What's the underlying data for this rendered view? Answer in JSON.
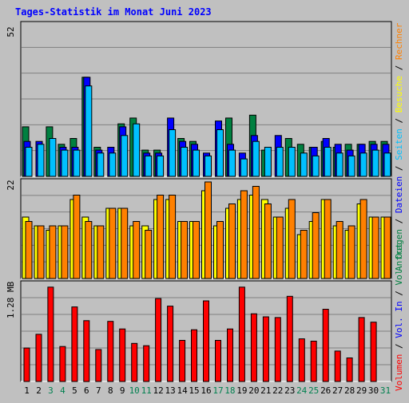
{
  "title": "Tages-Statistik im Monat Juni 2023",
  "chart_data": [
    {
      "type": "bar",
      "name": "hits-files-pages-visits",
      "categories": [
        "1",
        "2",
        "3",
        "4",
        "5",
        "6",
        "7",
        "8",
        "9",
        "10",
        "11",
        "12",
        "13",
        "14",
        "15",
        "16",
        "17",
        "18",
        "19",
        "20",
        "21",
        "22",
        "23",
        "24",
        "25",
        "26",
        "27",
        "28",
        "29",
        "30",
        "31"
      ],
      "ylim": [
        0,
        52
      ],
      "y_tick_label": "52",
      "series": [
        {
          "name": "Anfragen",
          "color": "#008040",
          "values": [
            17,
            0,
            17,
            11,
            13,
            34,
            10,
            0,
            18,
            20,
            9,
            9,
            0,
            13,
            12,
            0,
            0,
            20,
            0,
            21,
            9,
            0,
            13,
            11,
            10,
            12,
            10,
            11,
            11,
            12,
            12
          ]
        },
        {
          "name": "Dateien",
          "color": "#0000ff",
          "values": [
            12,
            12,
            0,
            10,
            10,
            34,
            9,
            10,
            17,
            0,
            8,
            8,
            20,
            12,
            11,
            8,
            19,
            11,
            8,
            14,
            0,
            14,
            0,
            0,
            10,
            13,
            11,
            9,
            11,
            11,
            11
          ]
        },
        {
          "name": "Seiten",
          "color": "#00c0ff",
          "values": [
            10,
            11,
            13,
            9,
            9,
            31,
            8,
            8,
            14,
            18,
            7,
            7,
            16,
            10,
            9,
            7,
            16,
            9,
            6,
            12,
            10,
            10,
            10,
            8,
            7,
            10,
            8,
            7,
            8,
            9,
            8
          ]
        },
        {
          "name": "Besuche",
          "color": "#ffff00",
          "values": [
            3,
            3,
            3,
            3,
            3,
            4,
            3,
            3,
            3,
            3,
            3,
            3,
            3,
            3,
            3,
            3,
            3,
            3,
            3,
            3,
            3,
            3,
            3,
            3,
            3,
            3,
            3,
            3,
            3,
            3,
            3
          ]
        }
      ],
      "right_axis_labels": [
        {
          "text": "Anfragen",
          "color": "#008040"
        },
        {
          "text": " / ",
          "color": "#000000"
        },
        {
          "text": "Dateien",
          "color": "#0000ff"
        },
        {
          "text": " / ",
          "color": "#000000"
        },
        {
          "text": "Seiten",
          "color": "#00c0ff"
        },
        {
          "text": " / ",
          "color": "#000000"
        },
        {
          "text": "Besuche",
          "color": "#ffff00"
        },
        {
          "text": " / ",
          "color": "#000000"
        },
        {
          "text": "Rechner",
          "color": "#ff8000"
        }
      ],
      "grid": true
    },
    {
      "type": "bar",
      "name": "visits-sites",
      "categories": [
        "1",
        "2",
        "3",
        "4",
        "5",
        "6",
        "7",
        "8",
        "9",
        "10",
        "11",
        "12",
        "13",
        "14",
        "15",
        "16",
        "17",
        "18",
        "19",
        "20",
        "21",
        "22",
        "23",
        "24",
        "25",
        "26",
        "27",
        "28",
        "29",
        "30",
        "31"
      ],
      "ylim": [
        0,
        22
      ],
      "y_tick_label": "22",
      "series": [
        {
          "name": "Besuche",
          "color": "#ffff00",
          "values": [
            14,
            12,
            11,
            12,
            18,
            14,
            12,
            16,
            16,
            12,
            12,
            18,
            18,
            13,
            13,
            20,
            12,
            16,
            18,
            19,
            18,
            14,
            16,
            10,
            13,
            18,
            12,
            11,
            17,
            14,
            14
          ]
        },
        {
          "name": "Rechner",
          "color": "#ff8000",
          "values": [
            13,
            12,
            12,
            12,
            19,
            13,
            12,
            16,
            16,
            13,
            11,
            19,
            19,
            13,
            13,
            22,
            13,
            17,
            20,
            21,
            17,
            14,
            18,
            11,
            15,
            18,
            13,
            12,
            18,
            14,
            14
          ]
        }
      ],
      "grid": true
    },
    {
      "type": "bar",
      "name": "volume",
      "categories": [
        "1",
        "2",
        "3",
        "4",
        "5",
        "6",
        "7",
        "8",
        "9",
        "10",
        "11",
        "12",
        "13",
        "14",
        "15",
        "16",
        "17",
        "18",
        "19",
        "20",
        "21",
        "22",
        "23",
        "24",
        "25",
        "26",
        "27",
        "28",
        "29",
        "30",
        "31"
      ],
      "ylim": [
        0,
        1.28
      ],
      "y_tick_label": "1.28 MB",
      "series": [
        {
          "name": "Volumen",
          "color": "#ff0000",
          "values": [
            0.44,
            0.62,
            1.24,
            0.46,
            0.98,
            0.8,
            0.42,
            0.79,
            0.69,
            0.5,
            0.47,
            1.09,
            0.99,
            0.54,
            0.68,
            1.06,
            0.54,
            0.69,
            1.24,
            0.89,
            0.85,
            0.84,
            1.12,
            0.56,
            0.53,
            0.95,
            0.4,
            0.31,
            0.84,
            0.78,
            0.0
          ]
        }
      ],
      "right_axis_labels": [
        {
          "text": "Volumen",
          "color": "#ff0000"
        },
        {
          "text": " / ",
          "color": "#000000"
        },
        {
          "text": "Vol. In",
          "color": "#0000ff"
        },
        {
          "text": " / ",
          "color": "#000000"
        },
        {
          "text": "Vol. Out",
          "color": "#008040"
        }
      ],
      "grid": true
    }
  ],
  "weekend_days": [
    "3",
    "4",
    "10",
    "11",
    "17",
    "18",
    "24",
    "25",
    "31"
  ],
  "colors": {
    "background": "#c0c0c0",
    "plot_background": "#c0c0c0",
    "grid": "#808080",
    "title": "#0000ff",
    "weekday_label": "#000000",
    "weekend_label": "#00804f"
  }
}
